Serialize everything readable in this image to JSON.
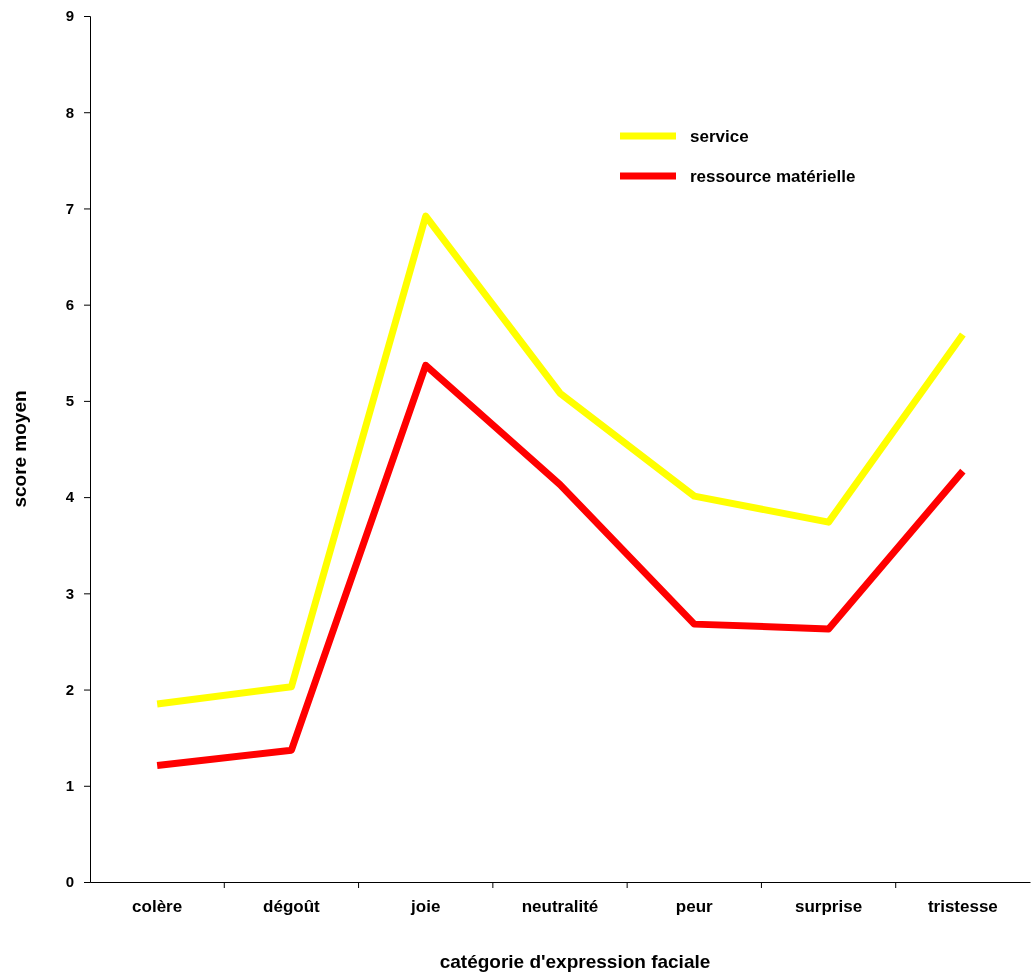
{
  "chart_data": {
    "type": "line",
    "xlabel": "catégorie d'expression faciale",
    "ylabel": "score moyen",
    "categories": [
      "colère",
      "dégoût",
      "joie",
      "neutralité",
      "peur",
      "surprise",
      "tristesse"
    ],
    "series": [
      {
        "name": "service",
        "color": "#ffff00",
        "values": [
          1.85,
          2.03,
          6.92,
          5.08,
          4.01,
          3.74,
          5.69
        ]
      },
      {
        "name": "ressource matérielle",
        "color": "#ff0000",
        "values": [
          1.21,
          1.37,
          5.37,
          4.13,
          2.68,
          2.63,
          4.27
        ]
      }
    ],
    "ylim": [
      0,
      9
    ],
    "yticks": [
      0,
      1,
      2,
      3,
      4,
      5,
      6,
      7,
      8,
      9
    ],
    "grid": false,
    "legend": "top right",
    "marker": "none",
    "line_style": "solid"
  }
}
